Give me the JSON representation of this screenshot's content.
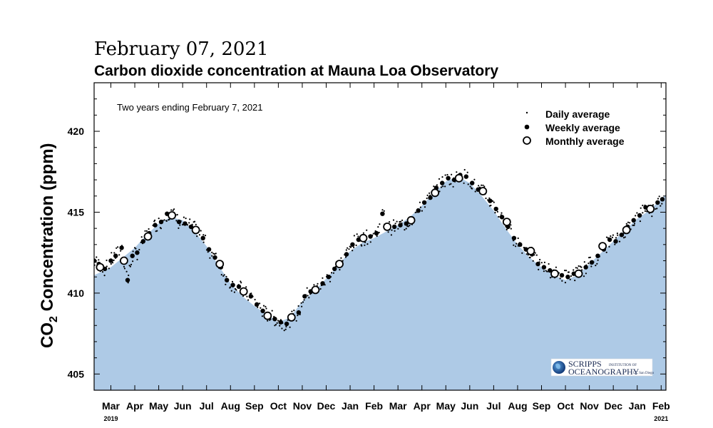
{
  "header": {
    "date": "February 07, 2021",
    "title": "Carbon dioxide concentration at Mauna Loa Observatory"
  },
  "colors": {
    "fill": "#aecae6",
    "marker": "#000000",
    "background": "#ffffff"
  },
  "note": "Two years ending February 7, 2021",
  "legend": {
    "daily": "Daily average",
    "weekly": "Weekly average",
    "monthly": "Monthly average"
  },
  "logo": {
    "name": "SCRIPPS",
    "line1": "INSTITUTION OF",
    "line2": "OCEANOGRAPHY",
    "tagline": "UC San Diego"
  },
  "chart_data": {
    "type": "scatter",
    "ylabel_main": "CO",
    "ylabel_sub": "2",
    "ylabel_rest": " Concentration (ppm)",
    "ylim": [
      404,
      423
    ],
    "yticks": [
      405,
      410,
      415,
      420
    ],
    "xrange": [
      1.3,
      25.2
    ],
    "month_ticks": [
      {
        "x": 2.0,
        "label": "Mar"
      },
      {
        "x": 3.0,
        "label": "Apr"
      },
      {
        "x": 4.0,
        "label": "May"
      },
      {
        "x": 5.0,
        "label": "Jun"
      },
      {
        "x": 6.0,
        "label": "Jul"
      },
      {
        "x": 7.0,
        "label": "Aug"
      },
      {
        "x": 8.0,
        "label": "Sep"
      },
      {
        "x": 9.0,
        "label": "Oct"
      },
      {
        "x": 10.0,
        "label": "Nov"
      },
      {
        "x": 11.0,
        "label": "Dec"
      },
      {
        "x": 12.0,
        "label": "Jan"
      },
      {
        "x": 13.0,
        "label": "Feb"
      },
      {
        "x": 14.0,
        "label": "Mar"
      },
      {
        "x": 15.0,
        "label": "Apr"
      },
      {
        "x": 16.0,
        "label": "May"
      },
      {
        "x": 17.0,
        "label": "Jun"
      },
      {
        "x": 18.0,
        "label": "Jul"
      },
      {
        "x": 19.0,
        "label": "Aug"
      },
      {
        "x": 20.0,
        "label": "Sep"
      },
      {
        "x": 21.0,
        "label": "Oct"
      },
      {
        "x": 22.0,
        "label": "Nov"
      },
      {
        "x": 23.0,
        "label": "Dec"
      },
      {
        "x": 24.0,
        "label": "Jan"
      },
      {
        "x": 25.0,
        "label": "Feb"
      }
    ],
    "year_labels": [
      {
        "x": 2.0,
        "label": "2019"
      },
      {
        "x": 25.0,
        "label": "2021"
      }
    ],
    "monthly": [
      {
        "x": 1.55,
        "y": 411.6
      },
      {
        "x": 2.55,
        "y": 412.0
      },
      {
        "x": 3.55,
        "y": 413.5
      },
      {
        "x": 4.55,
        "y": 414.8
      },
      {
        "x": 5.55,
        "y": 413.9
      },
      {
        "x": 6.55,
        "y": 411.8
      },
      {
        "x": 7.55,
        "y": 410.1
      },
      {
        "x": 8.55,
        "y": 408.6
      },
      {
        "x": 9.55,
        "y": 408.5
      },
      {
        "x": 10.55,
        "y": 410.2
      },
      {
        "x": 11.55,
        "y": 411.8
      },
      {
        "x": 12.55,
        "y": 413.4
      },
      {
        "x": 13.55,
        "y": 414.1
      },
      {
        "x": 14.55,
        "y": 414.5
      },
      {
        "x": 15.55,
        "y": 416.2
      },
      {
        "x": 16.55,
        "y": 417.1
      },
      {
        "x": 17.55,
        "y": 416.3
      },
      {
        "x": 18.55,
        "y": 414.4
      },
      {
        "x": 19.55,
        "y": 412.6
      },
      {
        "x": 20.55,
        "y": 411.2
      },
      {
        "x": 21.55,
        "y": 411.2
      },
      {
        "x": 22.55,
        "y": 412.9
      },
      {
        "x": 23.55,
        "y": 413.9
      },
      {
        "x": 24.55,
        "y": 415.2
      }
    ],
    "weekly": [
      {
        "x": 1.3,
        "y": 412.0
      },
      {
        "x": 1.5,
        "y": 411.8
      },
      {
        "x": 1.75,
        "y": 411.5
      },
      {
        "x": 2.0,
        "y": 412.0
      },
      {
        "x": 2.2,
        "y": 412.3
      },
      {
        "x": 2.45,
        "y": 412.8
      },
      {
        "x": 2.7,
        "y": 410.8
      },
      {
        "x": 2.9,
        "y": 412.3
      },
      {
        "x": 3.1,
        "y": 412.5
      },
      {
        "x": 3.35,
        "y": 413.2
      },
      {
        "x": 3.6,
        "y": 413.7
      },
      {
        "x": 3.85,
        "y": 414.2
      },
      {
        "x": 4.1,
        "y": 414.4
      },
      {
        "x": 4.35,
        "y": 414.9
      },
      {
        "x": 4.6,
        "y": 414.9
      },
      {
        "x": 4.85,
        "y": 414.4
      },
      {
        "x": 5.1,
        "y": 414.3
      },
      {
        "x": 5.35,
        "y": 414.1
      },
      {
        "x": 5.6,
        "y": 413.9
      },
      {
        "x": 5.85,
        "y": 413.4
      },
      {
        "x": 6.1,
        "y": 412.7
      },
      {
        "x": 6.35,
        "y": 412.2
      },
      {
        "x": 6.6,
        "y": 411.6
      },
      {
        "x": 6.85,
        "y": 410.8
      },
      {
        "x": 7.1,
        "y": 410.5
      },
      {
        "x": 7.35,
        "y": 410.4
      },
      {
        "x": 7.6,
        "y": 410.0
      },
      {
        "x": 7.85,
        "y": 409.8
      },
      {
        "x": 8.1,
        "y": 409.3
      },
      {
        "x": 8.35,
        "y": 408.9
      },
      {
        "x": 8.6,
        "y": 408.6
      },
      {
        "x": 8.85,
        "y": 408.4
      },
      {
        "x": 9.1,
        "y": 408.2
      },
      {
        "x": 9.35,
        "y": 408.1
      },
      {
        "x": 9.6,
        "y": 408.5
      },
      {
        "x": 9.85,
        "y": 408.8
      },
      {
        "x": 10.1,
        "y": 409.8
      },
      {
        "x": 10.35,
        "y": 410.1
      },
      {
        "x": 10.6,
        "y": 410.3
      },
      {
        "x": 10.85,
        "y": 410.6
      },
      {
        "x": 11.1,
        "y": 411.0
      },
      {
        "x": 11.35,
        "y": 411.5
      },
      {
        "x": 11.6,
        "y": 411.9
      },
      {
        "x": 11.85,
        "y": 412.4
      },
      {
        "x": 12.1,
        "y": 413.0
      },
      {
        "x": 12.35,
        "y": 413.3
      },
      {
        "x": 12.6,
        "y": 413.4
      },
      {
        "x": 12.85,
        "y": 413.5
      },
      {
        "x": 13.1,
        "y": 413.7
      },
      {
        "x": 13.35,
        "y": 414.9
      },
      {
        "x": 13.6,
        "y": 414.0
      },
      {
        "x": 13.85,
        "y": 414.1
      },
      {
        "x": 14.1,
        "y": 414.2
      },
      {
        "x": 14.35,
        "y": 414.3
      },
      {
        "x": 14.6,
        "y": 414.6
      },
      {
        "x": 14.85,
        "y": 415.1
      },
      {
        "x": 15.1,
        "y": 415.6
      },
      {
        "x": 15.35,
        "y": 415.9
      },
      {
        "x": 15.6,
        "y": 416.5
      },
      {
        "x": 15.85,
        "y": 416.8
      },
      {
        "x": 16.1,
        "y": 417.1
      },
      {
        "x": 16.35,
        "y": 417.0
      },
      {
        "x": 16.6,
        "y": 417.3
      },
      {
        "x": 16.85,
        "y": 417.2
      },
      {
        "x": 17.1,
        "y": 416.8
      },
      {
        "x": 17.35,
        "y": 416.4
      },
      {
        "x": 17.6,
        "y": 416.2
      },
      {
        "x": 17.85,
        "y": 415.7
      },
      {
        "x": 18.1,
        "y": 415.2
      },
      {
        "x": 18.35,
        "y": 414.7
      },
      {
        "x": 18.6,
        "y": 414.1
      },
      {
        "x": 18.85,
        "y": 413.4
      },
      {
        "x": 19.1,
        "y": 413.0
      },
      {
        "x": 19.35,
        "y": 412.7
      },
      {
        "x": 19.6,
        "y": 412.4
      },
      {
        "x": 19.85,
        "y": 411.8
      },
      {
        "x": 20.1,
        "y": 411.6
      },
      {
        "x": 20.35,
        "y": 411.4
      },
      {
        "x": 20.6,
        "y": 411.2
      },
      {
        "x": 20.85,
        "y": 411.1
      },
      {
        "x": 21.1,
        "y": 411.0
      },
      {
        "x": 21.35,
        "y": 411.2
      },
      {
        "x": 21.6,
        "y": 411.3
      },
      {
        "x": 21.85,
        "y": 411.6
      },
      {
        "x": 22.1,
        "y": 411.9
      },
      {
        "x": 22.35,
        "y": 412.3
      },
      {
        "x": 22.6,
        "y": 412.7
      },
      {
        "x": 22.85,
        "y": 413.3
      },
      {
        "x": 23.1,
        "y": 413.2
      },
      {
        "x": 23.35,
        "y": 413.6
      },
      {
        "x": 23.6,
        "y": 414.1
      },
      {
        "x": 23.85,
        "y": 414.5
      },
      {
        "x": 24.1,
        "y": 414.8
      },
      {
        "x": 24.35,
        "y": 415.3
      },
      {
        "x": 24.6,
        "y": 415.1
      },
      {
        "x": 24.85,
        "y": 415.6
      },
      {
        "x": 25.05,
        "y": 415.8
      }
    ],
    "baseline": [
      {
        "x": 1.3,
        "y": 411.1
      },
      {
        "x": 2.0,
        "y": 411.6
      },
      {
        "x": 2.5,
        "y": 412.2
      },
      {
        "x": 3.0,
        "y": 412.8
      },
      {
        "x": 3.5,
        "y": 413.6
      },
      {
        "x": 4.0,
        "y": 414.3
      },
      {
        "x": 4.5,
        "y": 414.7
      },
      {
        "x": 5.0,
        "y": 414.5
      },
      {
        "x": 5.5,
        "y": 413.8
      },
      {
        "x": 6.0,
        "y": 412.9
      },
      {
        "x": 6.5,
        "y": 411.7
      },
      {
        "x": 7.0,
        "y": 410.6
      },
      {
        "x": 7.5,
        "y": 409.8
      },
      {
        "x": 8.0,
        "y": 409.2
      },
      {
        "x": 8.5,
        "y": 408.7
      },
      {
        "x": 9.0,
        "y": 408.2
      },
      {
        "x": 9.5,
        "y": 408.5
      },
      {
        "x": 10.0,
        "y": 409.5
      },
      {
        "x": 10.5,
        "y": 410.1
      },
      {
        "x": 11.0,
        "y": 410.9
      },
      {
        "x": 11.5,
        "y": 411.7
      },
      {
        "x": 12.0,
        "y": 412.6
      },
      {
        "x": 12.5,
        "y": 413.1
      },
      {
        "x": 13.0,
        "y": 413.4
      },
      {
        "x": 13.5,
        "y": 413.8
      },
      {
        "x": 14.0,
        "y": 414.2
      },
      {
        "x": 14.5,
        "y": 414.7
      },
      {
        "x": 15.0,
        "y": 415.4
      },
      {
        "x": 15.5,
        "y": 416.2
      },
      {
        "x": 16.0,
        "y": 416.9
      },
      {
        "x": 16.5,
        "y": 417.2
      },
      {
        "x": 17.0,
        "y": 416.8
      },
      {
        "x": 17.5,
        "y": 416.0
      },
      {
        "x": 18.0,
        "y": 415.1
      },
      {
        "x": 18.5,
        "y": 414.0
      },
      {
        "x": 19.0,
        "y": 413.0
      },
      {
        "x": 19.5,
        "y": 412.2
      },
      {
        "x": 20.0,
        "y": 411.6
      },
      {
        "x": 20.5,
        "y": 411.1
      },
      {
        "x": 21.0,
        "y": 410.8
      },
      {
        "x": 21.5,
        "y": 411.1
      },
      {
        "x": 22.0,
        "y": 411.8
      },
      {
        "x": 22.5,
        "y": 412.5
      },
      {
        "x": 23.0,
        "y": 413.2
      },
      {
        "x": 23.5,
        "y": 413.9
      },
      {
        "x": 24.0,
        "y": 414.6
      },
      {
        "x": 24.5,
        "y": 415.1
      },
      {
        "x": 25.2,
        "y": 416.1
      }
    ]
  }
}
